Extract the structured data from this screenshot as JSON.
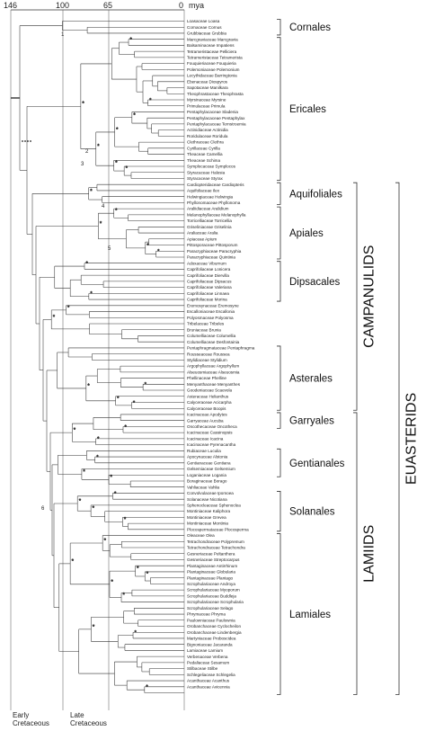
{
  "timescale": {
    "ticks": [
      "146",
      "100",
      "65",
      "0"
    ],
    "unit": "mya",
    "periods": [
      {
        "line1": "Early",
        "line2": "Cretaceous"
      },
      {
        "line1": "Late",
        "line2": "Cretaceous"
      }
    ]
  },
  "taxa": [
    "Loasaceae Loasa",
    "Cornaceae Cornus",
    "Grubbiaceae Grubbia",
    "Marcgraviaceae Marcgravia",
    "Balsaminaceae Impatiens",
    "Tetrameristaceae Pelliciera",
    "Tetrameristaceae Tetramerista",
    "Fouquieriaceae Fouquieria",
    "Polemoniaceae Polemonium",
    "Lecythidaceae Barringtonia",
    "Ebenaceae Diospyros",
    "Sapotaceae Manilkara",
    "Theophrastaceae Theophrasta",
    "Myrsinaceae Myrsine",
    "Primulaceae Primula",
    "Pentaphylacaceae Sladenia",
    "Pentaphylacaceae Pentaphylax",
    "Pentaphylacaceae Ternstroemia",
    "Actinidiaceae Actinidia",
    "Roridulaceae Roridula",
    "Clethraceae Clethra",
    "Cyrillaceae Cyrilla",
    "Theaceae Camellia",
    "Theaceae Schima",
    "Symplocaceae Symplocos",
    "Styracaceae Halesia",
    "Styracaceae Styrax",
    "Cardiopteridaceae Cardiopteris",
    "Aquifoliaceae Ilex",
    "Helwingiaceae Helwingia",
    "Phyllonomaceae Phyllonoma",
    "Araliidiaceae Aralidium",
    "Melanophyllaceae Melanophylla",
    "Torricelliaceae Torricellia",
    "Griseliniaceae Griselinia",
    "Araliaceae Aralia",
    "Apiaceae Apium",
    "Pittosporaceae Pittosporum",
    "Paracryphiaceae Paracryphia",
    "Paracryphiaceae Quintinia",
    "Adoxaceae Viburnum",
    "Caprifoliaceae Lonicera",
    "Caprifoliaceae Diervilla",
    "Caprifoliaceae Dipsacus",
    "Caprifoliaceae Valeriana",
    "Caprifoliaceae Linnaea",
    "Caprifoliaceae Morina",
    "Eremosynaceae Eremosyne",
    "Escalloniaceae Escallonia",
    "Polyosmaceae Polyosma",
    "Tribelaceae Tribeles",
    "Bruniaceae Brunia",
    "Columelliaceae Columellia",
    "Columelliaceae Desfontainia",
    "Pentaphragmataceae Pentaphragma",
    "Rousseaceae Roussea",
    "Stylidiaceae Stylidium",
    "Argophyllaceae Argophyllum",
    "Alseuosmiaceae Alseuosmia",
    "Phellinaceae Phelline",
    "Menyanthaceae Menyanthes",
    "Goodeniaceae Scaevola",
    "Asteraceae Helianthus",
    "Calyceraceae Acicarpha",
    "Calyceraceae Boopis",
    "Icacinaceae Apodytes",
    "Garryaceae Aucuba",
    "Oncothecaceae Oncotheca",
    "Icacinaceae Cassinopsis",
    "Icacinaceae Icacina",
    "Icacinaceae Pyrenacantha",
    "Rubiaceae Luculia",
    "Apocynaceae Alstonia",
    "Gentianaceae Gentiana",
    "Gelsemiaceae Gelsemium",
    "Loganiaceae Logania",
    "Boraginaceae Borago",
    "Vahliaceae Vahlia",
    "Convolvulaceae Ipomoea",
    "Solanaceae Nicotiana",
    "Sphenocleaceae Sphenoclea",
    "Montiniaceae Kaliphora",
    "Montiniaceae Grevea",
    "Montiniaceae Montinia",
    "Plocospermataceae Plocosperma",
    "Oleaceae Olea",
    "Tetrachondraceae Polypremum",
    "Tetrachondraceae Tetrachondra",
    "Gesneriaceae Peltanthera",
    "Gesneriaceae Streptocarpus",
    "Plantaginaceae Antirrhinum",
    "Plantaginaceae Globularia",
    "Plantaginaceae Plantago",
    "Scrophulariaceae Androya",
    "Scrophulariaceae Myoporum",
    "Scrophulariaceae Buddleja",
    "Scrophulariaceae Scrophularia",
    "Scrophulariaceae Selago",
    "Phrymaceae Phryma",
    "Paulowniaceae Paulownia",
    "Orobanchaceae Cyclocheilon",
    "Orobanchaceae Lindenbergia",
    "Martyniaceae Proboscidea",
    "Bignoniaceae Jacaranda",
    "Lamiaceae Lamium",
    "Verbenaceae Verbena",
    "Pedaliaceae Sesamum",
    "Stilbaceae Stilbe",
    "Schlegeliaceae Schlegelia",
    "Acanthaceae Acanthus",
    "Acanthaceae Avicennia"
  ],
  "orders": [
    {
      "name": "Cornales",
      "from": 0,
      "to": 2
    },
    {
      "name": "Ericales",
      "from": 3,
      "to": 26
    },
    {
      "name": "Aquifoliales",
      "from": 27,
      "to": 30
    },
    {
      "name": "Apiales",
      "from": 31,
      "to": 39
    },
    {
      "name": "Dipsacales",
      "from": 40,
      "to": 46
    },
    {
      "name": "Asterales",
      "from": 54,
      "to": 64
    },
    {
      "name": "Garryales",
      "from": 65,
      "to": 67
    },
    {
      "name": "Gentianales",
      "from": 71,
      "to": 75
    },
    {
      "name": "Solanales",
      "from": 78,
      "to": 84
    },
    {
      "name": "Lamiales",
      "from": 85,
      "to": 111
    }
  ],
  "clades": [
    {
      "name": "CAMPANULIDS",
      "from": 27,
      "to": 64
    },
    {
      "name": "LAMIIDS",
      "from": 65,
      "to": 111
    },
    {
      "name": "EUASTERIDS",
      "from": 27,
      "to": 111
    }
  ],
  "node_labels": [
    "1",
    "2",
    "3",
    "4",
    "5",
    "6"
  ]
}
